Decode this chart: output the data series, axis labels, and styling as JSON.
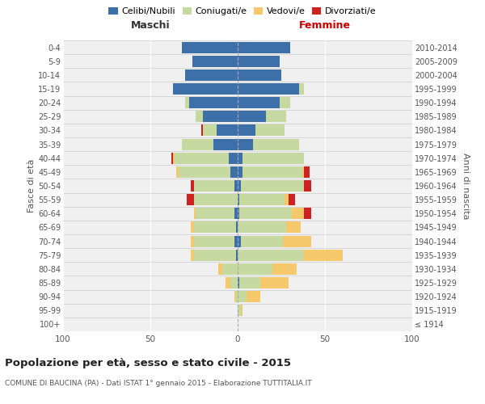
{
  "age_groups": [
    "100+",
    "95-99",
    "90-94",
    "85-89",
    "80-84",
    "75-79",
    "70-74",
    "65-69",
    "60-64",
    "55-59",
    "50-54",
    "45-49",
    "40-44",
    "35-39",
    "30-34",
    "25-29",
    "20-24",
    "15-19",
    "10-14",
    "5-9",
    "0-4"
  ],
  "birth_years": [
    "≤ 1914",
    "1915-1919",
    "1920-1924",
    "1925-1929",
    "1930-1934",
    "1935-1939",
    "1940-1944",
    "1945-1949",
    "1950-1954",
    "1955-1959",
    "1960-1964",
    "1965-1969",
    "1970-1974",
    "1975-1979",
    "1980-1984",
    "1985-1989",
    "1990-1994",
    "1995-1999",
    "2000-2004",
    "2005-2009",
    "2010-2014"
  ],
  "males": {
    "celibe": [
      0,
      0,
      0,
      0,
      0,
      1,
      2,
      1,
      2,
      0,
      2,
      4,
      5,
      14,
      12,
      20,
      28,
      37,
      30,
      26,
      32
    ],
    "coniugato": [
      0,
      0,
      1,
      4,
      9,
      24,
      23,
      24,
      22,
      25,
      23,
      30,
      31,
      18,
      8,
      4,
      2,
      0,
      0,
      0,
      0
    ],
    "vedovo": [
      0,
      0,
      1,
      3,
      2,
      2,
      2,
      2,
      1,
      0,
      0,
      1,
      1,
      0,
      0,
      0,
      0,
      0,
      0,
      0,
      0
    ],
    "divorziato": [
      0,
      0,
      0,
      0,
      0,
      0,
      0,
      0,
      0,
      4,
      2,
      0,
      1,
      0,
      1,
      0,
      0,
      0,
      0,
      0,
      0
    ]
  },
  "females": {
    "nubile": [
      0,
      0,
      0,
      1,
      0,
      0,
      2,
      0,
      1,
      1,
      2,
      3,
      3,
      9,
      10,
      16,
      24,
      35,
      25,
      24,
      30
    ],
    "coniugata": [
      0,
      2,
      5,
      12,
      20,
      38,
      24,
      28,
      30,
      26,
      36,
      34,
      35,
      26,
      17,
      12,
      6,
      3,
      0,
      0,
      0
    ],
    "vedova": [
      0,
      1,
      8,
      16,
      14,
      22,
      16,
      8,
      7,
      2,
      0,
      1,
      0,
      0,
      0,
      0,
      0,
      0,
      0,
      0,
      0
    ],
    "divorziata": [
      0,
      0,
      0,
      0,
      0,
      0,
      0,
      0,
      4,
      4,
      4,
      3,
      0,
      0,
      0,
      0,
      0,
      0,
      0,
      0,
      0
    ]
  },
  "colors": {
    "celibe": "#3d6fa8",
    "coniugato": "#c5d9a0",
    "vedovo": "#f5c96b",
    "divorziato": "#cc2222"
  },
  "title": "Popolazione per età, sesso e stato civile - 2015",
  "subtitle": "COMUNE DI BAUCINA (PA) - Dati ISTAT 1° gennaio 2015 - Elaborazione TUTTITALIA.IT",
  "ylabel_left": "Fasce di età",
  "ylabel_right": "Anni di nascita",
  "xlim": 100,
  "bg_color": "#ffffff",
  "plot_bg": "#f0f0f0",
  "grid_color": "#ffffff",
  "legend_labels": [
    "Celibi/Nubili",
    "Coniugati/e",
    "Vedovi/e",
    "Divorziati/e"
  ]
}
